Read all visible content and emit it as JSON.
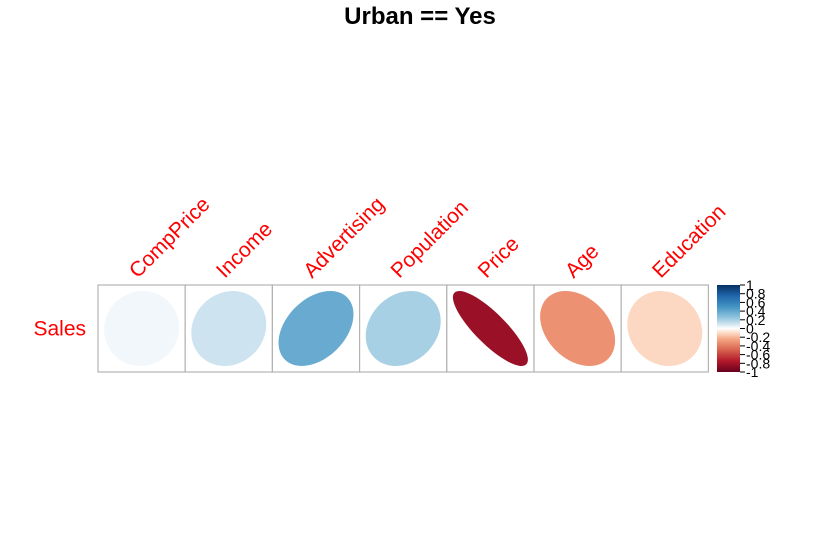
{
  "chart_data": {
    "type": "heatmap",
    "title": "Urban == Yes",
    "rows": [
      "Sales"
    ],
    "columns": [
      "CompPrice",
      "Income",
      "Advertising",
      "Population",
      "Price",
      "Age",
      "Education"
    ],
    "values": [
      [
        0.03,
        0.11,
        0.38,
        0.2,
        -0.83,
        -0.32,
        -0.11
      ]
    ],
    "color_scale": {
      "min": -1,
      "max": 1,
      "ticks": [
        "1",
        "0.8",
        "0.6",
        "0.4",
        "0.2",
        "0",
        "-0.2",
        "-0.4",
        "-0.6",
        "-0.8",
        "-1"
      ]
    },
    "label_color": "#ff0000",
    "grid": true,
    "legend_position": "right"
  }
}
